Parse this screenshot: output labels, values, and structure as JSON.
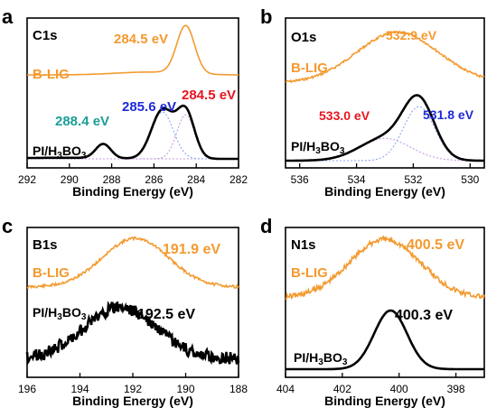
{
  "figure": {
    "colors": {
      "blig": "#f39a2f",
      "pi": "#000000",
      "red": "#e8141e",
      "blue": "#1f2bd6",
      "teal": "#1a9e96",
      "violet": "#c79ae0",
      "fit_blue": "#8fa8f0"
    }
  },
  "chart_data": [
    {
      "type": "line",
      "panel_letter": "a",
      "element": "C1s",
      "xlabel": "Binding Energy (eV)",
      "xlim": [
        292,
        282
      ],
      "x_ticks": [
        "292",
        "290",
        "288",
        "286",
        "284",
        "282"
      ],
      "series": [
        {
          "name": "B-LIG",
          "peaks_eV": [
            284.5
          ]
        },
        {
          "name": "PI/H₃BO₃",
          "peaks_eV": [
            288.4,
            285.6,
            284.5
          ]
        }
      ],
      "annotations": [
        "284.5 eV",
        "285.6 eV",
        "284.5 eV",
        "288.4 eV"
      ]
    },
    {
      "type": "line",
      "panel_letter": "b",
      "element": "O1s",
      "xlabel": "Binding Energy (eV)",
      "xlim": [
        536.5,
        529.5
      ],
      "x_ticks": [
        "536",
        "534",
        "532",
        "530"
      ],
      "series": [
        {
          "name": "B-LIG",
          "peaks_eV": [
            532.9
          ]
        },
        {
          "name": "PI/H₃BO₃",
          "peaks_eV": [
            533.0,
            531.8
          ]
        }
      ],
      "annotations": [
        "532.9 eV",
        "533.0 eV",
        "531.8 eV"
      ]
    },
    {
      "type": "line",
      "panel_letter": "c",
      "element": "B1s",
      "xlabel": "Binding Energy (eV)",
      "xlim": [
        196,
        188
      ],
      "x_ticks": [
        "196",
        "194",
        "192",
        "190",
        "188"
      ],
      "series": [
        {
          "name": "B-LIG",
          "peaks_eV": [
            191.9
          ]
        },
        {
          "name": "PI/H₃BO₃",
          "peaks_eV": [
            192.5
          ]
        }
      ],
      "annotations": [
        "191.9 eV",
        "192.5 eV"
      ]
    },
    {
      "type": "line",
      "panel_letter": "d",
      "element": "N1s",
      "xlabel": "Binding Energy (eV)",
      "xlim": [
        404,
        397
      ],
      "x_ticks": [
        "404",
        "402",
        "400",
        "398"
      ],
      "series": [
        {
          "name": "B-LIG",
          "peaks_eV": [
            400.5
          ]
        },
        {
          "name": "PI/H₃BO₃",
          "peaks_eV": [
            400.3
          ]
        }
      ],
      "annotations": [
        "400.5 eV",
        "400.3 eV"
      ]
    }
  ]
}
